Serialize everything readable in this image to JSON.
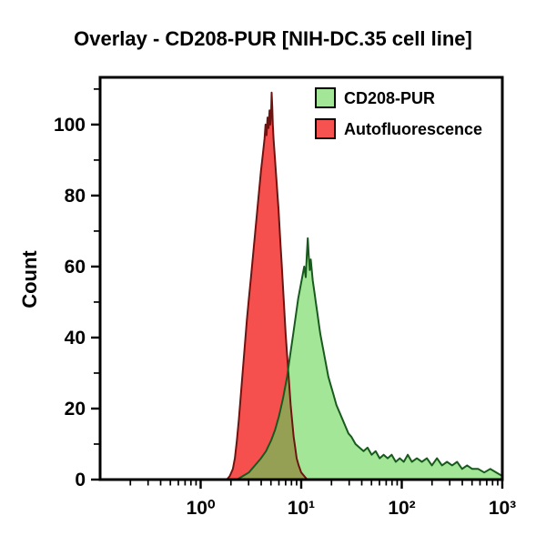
{
  "title": "Overlay - CD208-PUR [NIH-DC.35 cell line]",
  "colors": {
    "background": "#ffffff",
    "axis": "#000000",
    "red_fill": "#f6504e",
    "red_edge": "#6e1410",
    "green_fill": "#a3e697",
    "green_edge": "#185a1d",
    "overlap_fill": "#96a055"
  },
  "chart_data": {
    "type": "area",
    "subtype": "flow-cytometry-histogram-overlay",
    "title": "Overlay - CD208-PUR [NIH-DC.35 cell line]",
    "xlabel": "",
    "ylabel": "Count",
    "x_scale": "log10",
    "xlog_range": [
      -1,
      3
    ],
    "x_tick_logs": [
      0,
      1,
      2,
      3
    ],
    "x_tick_labels": [
      "10⁰",
      "10¹",
      "10²",
      "10³"
    ],
    "y_ticks": [
      0,
      20,
      40,
      60,
      80,
      100
    ],
    "y_minor_ticks": [
      10,
      30,
      50,
      70,
      90,
      110
    ],
    "ylim": [
      0,
      113.3
    ],
    "grid": false,
    "legend_position": "top-right-inside",
    "legend": [
      {
        "label": "CD208-PUR",
        "swatch": "#a3e697"
      },
      {
        "label": "Autofluorescence",
        "swatch": "#f6524f"
      }
    ],
    "series": [
      {
        "name": "Autofluorescence",
        "fill": "#f6504e",
        "edge": "#6e1410",
        "peak_x": 5.2,
        "peak_count": 109,
        "points_log10x_count": [
          [
            0.26,
            0
          ],
          [
            0.29,
            1
          ],
          [
            0.32,
            3
          ],
          [
            0.34,
            6
          ],
          [
            0.36,
            11
          ],
          [
            0.38,
            17
          ],
          [
            0.4,
            24
          ],
          [
            0.42,
            31
          ],
          [
            0.44,
            38
          ],
          [
            0.46,
            45
          ],
          [
            0.48,
            51
          ],
          [
            0.5,
            57
          ],
          [
            0.52,
            63
          ],
          [
            0.54,
            69
          ],
          [
            0.56,
            75
          ],
          [
            0.58,
            81
          ],
          [
            0.6,
            87
          ],
          [
            0.62,
            92
          ],
          [
            0.635,
            96
          ],
          [
            0.645,
            100
          ],
          [
            0.655,
            97
          ],
          [
            0.665,
            102
          ],
          [
            0.675,
            99
          ],
          [
            0.685,
            104
          ],
          [
            0.692,
            100
          ],
          [
            0.7,
            103
          ],
          [
            0.706,
            109
          ],
          [
            0.712,
            105
          ],
          [
            0.718,
            100
          ],
          [
            0.725,
            96
          ],
          [
            0.735,
            92
          ],
          [
            0.745,
            88
          ],
          [
            0.755,
            84
          ],
          [
            0.765,
            80
          ],
          [
            0.775,
            76
          ],
          [
            0.785,
            71
          ],
          [
            0.795,
            66
          ],
          [
            0.805,
            61
          ],
          [
            0.815,
            56
          ],
          [
            0.825,
            51
          ],
          [
            0.835,
            46
          ],
          [
            0.845,
            41
          ],
          [
            0.855,
            37
          ],
          [
            0.865,
            33
          ],
          [
            0.875,
            29
          ],
          [
            0.885,
            25
          ],
          [
            0.895,
            21
          ],
          [
            0.905,
            18
          ],
          [
            0.915,
            15
          ],
          [
            0.925,
            12
          ],
          [
            0.94,
            9
          ],
          [
            0.955,
            6
          ],
          [
            0.975,
            4
          ],
          [
            1.0,
            2
          ],
          [
            1.03,
            1
          ],
          [
            1.06,
            0
          ]
        ]
      },
      {
        "name": "CD208-PUR",
        "fill": "#a3e697",
        "edge": "#185a1d",
        "peak_x": 11.6,
        "peak_count": 68,
        "points_log10x_count": [
          [
            0.36,
            0
          ],
          [
            0.42,
            1
          ],
          [
            0.48,
            2
          ],
          [
            0.54,
            4
          ],
          [
            0.6,
            6
          ],
          [
            0.65,
            8
          ],
          [
            0.7,
            11
          ],
          [
            0.74,
            14
          ],
          [
            0.78,
            18
          ],
          [
            0.82,
            23
          ],
          [
            0.86,
            29
          ],
          [
            0.89,
            35
          ],
          [
            0.92,
            41
          ],
          [
            0.95,
            47
          ],
          [
            0.97,
            51
          ],
          [
            0.99,
            54
          ],
          [
            1.01,
            57
          ],
          [
            1.03,
            60
          ],
          [
            1.045,
            57
          ],
          [
            1.055,
            63
          ],
          [
            1.065,
            68
          ],
          [
            1.075,
            63
          ],
          [
            1.085,
            59
          ],
          [
            1.095,
            62
          ],
          [
            1.105,
            59
          ],
          [
            1.115,
            56
          ],
          [
            1.13,
            53
          ],
          [
            1.145,
            50
          ],
          [
            1.16,
            47
          ],
          [
            1.175,
            44
          ],
          [
            1.19,
            41
          ],
          [
            1.21,
            38
          ],
          [
            1.23,
            35
          ],
          [
            1.25,
            32
          ],
          [
            1.27,
            29
          ],
          [
            1.29,
            27
          ],
          [
            1.32,
            24
          ],
          [
            1.35,
            21
          ],
          [
            1.38,
            19
          ],
          [
            1.41,
            17
          ],
          [
            1.44,
            15
          ],
          [
            1.47,
            13
          ],
          [
            1.5,
            12
          ],
          [
            1.54,
            10
          ],
          [
            1.58,
            9
          ],
          [
            1.62,
            8
          ],
          [
            1.66,
            9
          ],
          [
            1.7,
            7
          ],
          [
            1.74,
            8
          ],
          [
            1.78,
            6
          ],
          [
            1.82,
            7
          ],
          [
            1.86,
            6
          ],
          [
            1.9,
            7
          ],
          [
            1.94,
            5
          ],
          [
            1.98,
            6
          ],
          [
            2.02,
            5
          ],
          [
            2.06,
            7
          ],
          [
            2.1,
            5
          ],
          [
            2.15,
            6
          ],
          [
            2.2,
            5
          ],
          [
            2.25,
            6
          ],
          [
            2.3,
            4
          ],
          [
            2.35,
            6
          ],
          [
            2.4,
            4
          ],
          [
            2.45,
            5
          ],
          [
            2.5,
            4
          ],
          [
            2.55,
            5
          ],
          [
            2.6,
            3
          ],
          [
            2.65,
            4
          ],
          [
            2.7,
            3
          ],
          [
            2.76,
            3
          ],
          [
            2.82,
            2
          ],
          [
            2.88,
            3
          ],
          [
            2.94,
            2
          ],
          [
            3.0,
            1
          ]
        ]
      }
    ]
  }
}
